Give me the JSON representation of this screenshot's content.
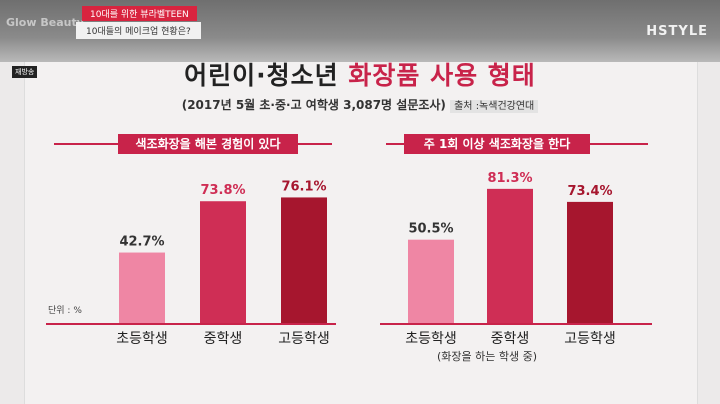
{
  "overlay": {
    "logo": "Glow Beauty",
    "caption1": "10대를 위한 뷰라벨TEEN",
    "caption2": "10대들의 메이크업 현황은?",
    "channel": "HSTYLE",
    "rebroadcast": "재방송"
  },
  "title": {
    "part1": "어린이·청소년",
    "part2": "화장품 사용 형태"
  },
  "subtitle": {
    "main": "(2017년 5월 초·중·고 여학생 3,087명 설문조사)",
    "source": "출처 :녹색건강연대"
  },
  "unit_note": "단위 : %",
  "footnote": "(화장을 하는 학생 중)",
  "colors": {
    "elementary": "#ef86a4",
    "middle": "#cf2e55",
    "high": "#a6162e",
    "accent": "#c8234a"
  },
  "chart_data": [
    {
      "type": "bar",
      "title": "색조화장을 해본 경험이 있다",
      "categories": [
        "초등학생",
        "중학생",
        "고등학생"
      ],
      "values": [
        42.7,
        73.8,
        76.1
      ],
      "labels": [
        "42.7%",
        "73.8%",
        "76.1%"
      ],
      "ylabel": "단위 : %",
      "ylim": [
        0,
        100
      ],
      "grid": false
    },
    {
      "type": "bar",
      "title": "주 1회 이상 색조화장을 한다",
      "categories": [
        "초등학생",
        "중학생",
        "고등학생"
      ],
      "values": [
        50.5,
        81.3,
        73.4
      ],
      "labels": [
        "50.5%",
        "81.3%",
        "73.4%"
      ],
      "ylim": [
        0,
        100
      ],
      "grid": false
    }
  ]
}
